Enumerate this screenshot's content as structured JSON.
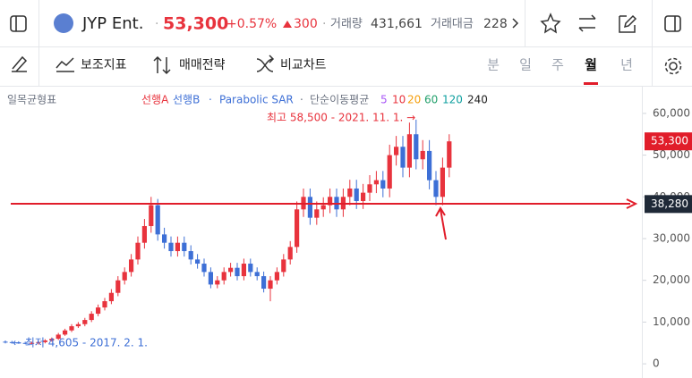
{
  "header": {
    "symbol": "JYP Ent.",
    "price": "53,300",
    "change_pct": "+0.57%",
    "change": "300",
    "volume_label": "거래량",
    "volume": "431,661",
    "amount_label": "거래대금",
    "amount": "228"
  },
  "toolbar": {
    "indicators": "보조지표",
    "strategy": "매매전략",
    "compare": "비교차트",
    "periods": [
      "분",
      "일",
      "주",
      "월",
      "년"
    ]
  },
  "chart_data": {
    "type": "candlestick",
    "legend": {
      "ichimoku": "일목균형표",
      "span_a": "선행A",
      "span_b": "선행B",
      "sar": "Parabolic SAR",
      "sma": "단순이동평균",
      "sma_periods": [
        "5",
        "10",
        "20",
        "60",
        "120",
        "240"
      ]
    },
    "annotations": {
      "high": "최고 58,500 - 2021. 11. 1. →",
      "low": "← 최저 4,605 - 2017. 2. 1."
    },
    "up_color": "#e8333d",
    "down_color": "#3d6fd6",
    "open": [
      5300,
      5200,
      5100,
      5000,
      4900,
      5000,
      5200,
      5600,
      6000,
      7000,
      8000,
      9000,
      9500,
      10500,
      12000,
      13500,
      15000,
      17000,
      20000,
      22000,
      25000,
      29000,
      33000,
      38000,
      31000,
      29000,
      27000,
      29000,
      27000,
      25000,
      24000,
      22000,
      19000,
      20000,
      22000,
      23000,
      21000,
      24000,
      22000,
      21000,
      18000,
      20000,
      22000,
      25000,
      28000,
      37000,
      40000,
      35000,
      37000,
      38000,
      40000,
      37000,
      40000,
      42000,
      39000,
      41000,
      43000,
      44000,
      42000,
      50000,
      52000,
      47000,
      55000,
      49000,
      51000,
      44000,
      40000,
      47000
    ],
    "high": [
      5600,
      5500,
      5400,
      5300,
      5300,
      5500,
      5900,
      6300,
      7400,
      8400,
      9500,
      10000,
      11000,
      12600,
      14200,
      15800,
      17900,
      21000,
      23100,
      26300,
      30500,
      34700,
      40000,
      39500,
      32600,
      30500,
      30500,
      30500,
      28400,
      26300,
      25200,
      23100,
      21000,
      23100,
      24200,
      24200,
      25200,
      25200,
      23100,
      22100,
      21000,
      23100,
      26300,
      29400,
      38900,
      42000,
      42000,
      38900,
      39900,
      42000,
      42000,
      42000,
      44100,
      44100,
      43100,
      45200,
      46200,
      46200,
      52500,
      54600,
      54600,
      57800,
      58500,
      53600,
      53600,
      46200,
      49400,
      55000
    ],
    "low": [
      4900,
      4800,
      4800,
      4700,
      4700,
      4605,
      4900,
      5300,
      5700,
      6700,
      7600,
      8600,
      9000,
      10000,
      11400,
      12800,
      14300,
      16200,
      19000,
      20900,
      23800,
      27600,
      31400,
      29500,
      27600,
      25700,
      25700,
      25700,
      23800,
      22800,
      20900,
      18100,
      18100,
      19000,
      20900,
      20000,
      20000,
      20900,
      20000,
      17100,
      15000,
      19000,
      20900,
      23800,
      26600,
      35200,
      33300,
      33300,
      35200,
      36100,
      35200,
      35200,
      38000,
      37100,
      37100,
      39000,
      40900,
      39900,
      39900,
      47500,
      44700,
      44700,
      46600,
      46600,
      41800,
      38000,
      38000,
      44700
    ],
    "close": [
      5200,
      5100,
      5000,
      4900,
      5000,
      5200,
      5600,
      6000,
      7000,
      8000,
      9000,
      9500,
      10500,
      12000,
      13500,
      15000,
      17000,
      20000,
      22000,
      25000,
      29000,
      33000,
      38000,
      31000,
      29000,
      27000,
      29000,
      27000,
      25000,
      24000,
      22000,
      19000,
      20000,
      22000,
      23000,
      21000,
      24000,
      22000,
      21000,
      18000,
      20000,
      22000,
      25000,
      28000,
      37000,
      40000,
      35000,
      37000,
      38000,
      40000,
      37000,
      40000,
      42000,
      39000,
      41000,
      43000,
      44000,
      42000,
      50000,
      52000,
      47000,
      55000,
      49000,
      51000,
      44000,
      40000,
      47000,
      53300
    ],
    "ylim": [
      -3400,
      66400
    ],
    "yticks": [
      {
        "value": 0,
        "label": "0"
      },
      {
        "value": 10000,
        "label": "10,000"
      },
      {
        "value": 20000,
        "label": "20,000"
      },
      {
        "value": 30000,
        "label": "30,000"
      },
      {
        "value": 40000,
        "label": "40,000"
      },
      {
        "value": 50000,
        "label": "50,000"
      },
      {
        "value": 60000,
        "label": "60,000"
      }
    ],
    "price_tags": [
      {
        "value": 53300,
        "label": "53,300"
      },
      {
        "value": 38280,
        "label": "38,280"
      }
    ]
  }
}
